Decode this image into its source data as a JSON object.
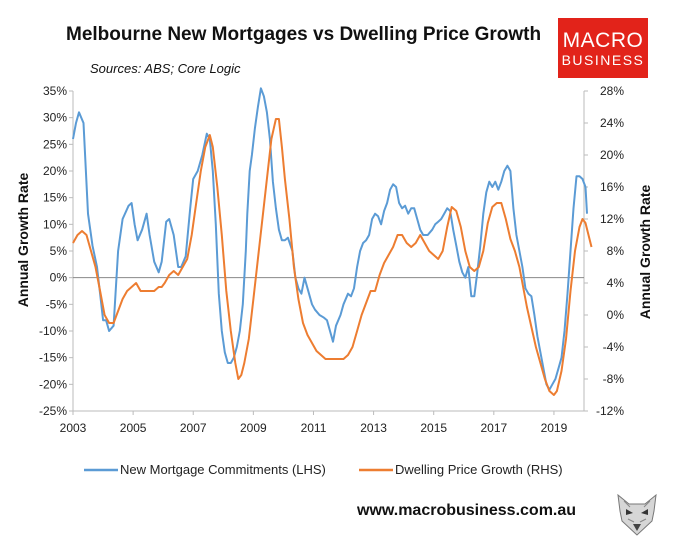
{
  "branding": {
    "logo_line1": "MACRO",
    "logo_line2": "BUSINESS",
    "website": "www.macrobusiness.com.au",
    "logo_color": "#e2231a"
  },
  "chart_data": {
    "type": "line",
    "title": "Melbourne New Mortgages vs Dwelling Price Growth",
    "subtitle": "Sources: ABS; Core Logic",
    "ylabel": "Annual Growth Rate",
    "y2label": "Annual Growth Rate",
    "xlim": [
      2003,
      2020
    ],
    "ylim": [
      -25,
      35
    ],
    "y2lim": [
      -12,
      28
    ],
    "x_ticks": [
      "2003",
      "2005",
      "2007",
      "2009",
      "2011",
      "2013",
      "2015",
      "2017",
      "2019"
    ],
    "y_ticks": [
      "35%",
      "30%",
      "25%",
      "20%",
      "15%",
      "10%",
      "5%",
      "0%",
      "-5%",
      "-10%",
      "-15%",
      "-20%",
      "-25%"
    ],
    "y2_ticks": [
      "28%",
      "24%",
      "20%",
      "16%",
      "12%",
      "8%",
      "4%",
      "0%",
      "-4%",
      "-8%",
      "-12%"
    ],
    "legend_position": "bottom",
    "series": [
      {
        "name": "New Mortgage Commitments (LHS)",
        "axis": "left",
        "color": "#5b9bd5",
        "points": [
          [
            2003.0,
            26
          ],
          [
            2003.1,
            29
          ],
          [
            2003.2,
            31
          ],
          [
            2003.35,
            29
          ],
          [
            2003.5,
            12
          ],
          [
            2003.65,
            6
          ],
          [
            2003.8,
            2
          ],
          [
            2003.9,
            -3
          ],
          [
            2004.0,
            -8
          ],
          [
            2004.1,
            -8
          ],
          [
            2004.2,
            -10
          ],
          [
            2004.35,
            -9
          ],
          [
            2004.5,
            5
          ],
          [
            2004.65,
            11
          ],
          [
            2004.85,
            13.5
          ],
          [
            2004.95,
            14
          ],
          [
            2005.05,
            10
          ],
          [
            2005.15,
            7
          ],
          [
            2005.3,
            9
          ],
          [
            2005.45,
            12
          ],
          [
            2005.55,
            8
          ],
          [
            2005.7,
            3
          ],
          [
            2005.85,
            1
          ],
          [
            2005.95,
            3
          ],
          [
            2006.1,
            10.5
          ],
          [
            2006.2,
            11
          ],
          [
            2006.35,
            8
          ],
          [
            2006.5,
            2
          ],
          [
            2006.6,
            2
          ],
          [
            2006.75,
            4
          ],
          [
            2006.9,
            13
          ],
          [
            2007.0,
            18.5
          ],
          [
            2007.15,
            20
          ],
          [
            2007.3,
            23
          ],
          [
            2007.45,
            27
          ],
          [
            2007.55,
            26
          ],
          [
            2007.65,
            20
          ],
          [
            2007.75,
            10
          ],
          [
            2007.85,
            -3
          ],
          [
            2007.95,
            -10
          ],
          [
            2008.05,
            -14
          ],
          [
            2008.15,
            -16
          ],
          [
            2008.25,
            -16
          ],
          [
            2008.35,
            -15
          ],
          [
            2008.45,
            -13
          ],
          [
            2008.55,
            -10
          ],
          [
            2008.65,
            -5
          ],
          [
            2008.75,
            5
          ],
          [
            2008.8,
            12
          ],
          [
            2008.88,
            20
          ],
          [
            2008.95,
            23
          ],
          [
            2009.05,
            28
          ],
          [
            2009.15,
            32
          ],
          [
            2009.25,
            35.5
          ],
          [
            2009.35,
            34
          ],
          [
            2009.45,
            31
          ],
          [
            2009.55,
            26
          ],
          [
            2009.65,
            18
          ],
          [
            2009.75,
            13
          ],
          [
            2009.85,
            9
          ],
          [
            2009.95,
            7
          ],
          [
            2010.05,
            7
          ],
          [
            2010.15,
            7.5
          ],
          [
            2010.3,
            5
          ],
          [
            2010.4,
            0
          ],
          [
            2010.5,
            -2
          ],
          [
            2010.6,
            -3
          ],
          [
            2010.7,
            0
          ],
          [
            2010.8,
            -2
          ],
          [
            2010.95,
            -5
          ],
          [
            2011.05,
            -6
          ],
          [
            2011.2,
            -7
          ],
          [
            2011.35,
            -7.5
          ],
          [
            2011.45,
            -8
          ],
          [
            2011.55,
            -10
          ],
          [
            2011.65,
            -12
          ],
          [
            2011.75,
            -9
          ],
          [
            2011.9,
            -7
          ],
          [
            2012.0,
            -5
          ],
          [
            2012.15,
            -3
          ],
          [
            2012.25,
            -3.5
          ],
          [
            2012.35,
            -2
          ],
          [
            2012.45,
            2
          ],
          [
            2012.55,
            5
          ],
          [
            2012.65,
            6.5
          ],
          [
            2012.75,
            7
          ],
          [
            2012.85,
            8
          ],
          [
            2012.95,
            11
          ],
          [
            2013.05,
            12
          ],
          [
            2013.15,
            11.5
          ],
          [
            2013.25,
            10
          ],
          [
            2013.35,
            12.5
          ],
          [
            2013.45,
            14
          ],
          [
            2013.55,
            16.5
          ],
          [
            2013.65,
            17.5
          ],
          [
            2013.75,
            17
          ],
          [
            2013.85,
            14
          ],
          [
            2013.95,
            13
          ],
          [
            2014.05,
            13.5
          ],
          [
            2014.15,
            12
          ],
          [
            2014.25,
            13
          ],
          [
            2014.35,
            13
          ],
          [
            2014.45,
            11
          ],
          [
            2014.55,
            9
          ],
          [
            2014.65,
            8
          ],
          [
            2014.8,
            8
          ],
          [
            2014.95,
            9
          ],
          [
            2015.05,
            10
          ],
          [
            2015.15,
            10.5
          ],
          [
            2015.25,
            11
          ],
          [
            2015.35,
            12
          ],
          [
            2015.45,
            13
          ],
          [
            2015.55,
            12.5
          ],
          [
            2015.65,
            9
          ],
          [
            2015.75,
            6
          ],
          [
            2015.85,
            3
          ],
          [
            2015.95,
            1
          ],
          [
            2016.05,
            0
          ],
          [
            2016.15,
            2
          ],
          [
            2016.25,
            -3.5
          ],
          [
            2016.35,
            -3.5
          ],
          [
            2016.45,
            1
          ],
          [
            2016.55,
            6
          ],
          [
            2016.65,
            12
          ],
          [
            2016.75,
            16
          ],
          [
            2016.85,
            18
          ],
          [
            2016.95,
            17
          ],
          [
            2017.05,
            18
          ],
          [
            2017.15,
            16.5
          ],
          [
            2017.25,
            18
          ],
          [
            2017.35,
            20
          ],
          [
            2017.45,
            21
          ],
          [
            2017.55,
            20
          ],
          [
            2017.65,
            13
          ],
          [
            2017.75,
            8
          ],
          [
            2017.85,
            5
          ],
          [
            2017.95,
            2
          ],
          [
            2018.05,
            -2
          ],
          [
            2018.15,
            -3
          ],
          [
            2018.25,
            -3.5
          ],
          [
            2018.35,
            -7
          ],
          [
            2018.45,
            -11
          ],
          [
            2018.55,
            -14
          ],
          [
            2018.65,
            -17
          ],
          [
            2018.75,
            -20
          ],
          [
            2018.85,
            -21
          ],
          [
            2018.95,
            -20
          ],
          [
            2019.05,
            -19
          ],
          [
            2019.15,
            -17
          ],
          [
            2019.25,
            -15
          ],
          [
            2019.35,
            -10
          ],
          [
            2019.45,
            -3
          ],
          [
            2019.55,
            5
          ],
          [
            2019.65,
            13
          ],
          [
            2019.75,
            19
          ],
          [
            2019.85,
            19
          ],
          [
            2019.95,
            18.5
          ],
          [
            2020.05,
            17
          ],
          [
            2020.1,
            12
          ]
        ]
      },
      {
        "name": "Dwelling Price Growth (RHS)",
        "axis": "right",
        "color": "#ed7d31",
        "points": [
          [
            2003.0,
            9
          ],
          [
            2003.15,
            10
          ],
          [
            2003.3,
            10.5
          ],
          [
            2003.45,
            10
          ],
          [
            2003.6,
            8
          ],
          [
            2003.75,
            6
          ],
          [
            2003.9,
            3
          ],
          [
            2004.05,
            0
          ],
          [
            2004.2,
            -1
          ],
          [
            2004.35,
            -1
          ],
          [
            2004.5,
            0.5
          ],
          [
            2004.65,
            2
          ],
          [
            2004.8,
            3
          ],
          [
            2004.95,
            3.5
          ],
          [
            2005.1,
            4
          ],
          [
            2005.25,
            3
          ],
          [
            2005.4,
            3
          ],
          [
            2005.55,
            3
          ],
          [
            2005.7,
            3
          ],
          [
            2005.85,
            3.5
          ],
          [
            2005.95,
            3.5
          ],
          [
            2006.05,
            4
          ],
          [
            2006.2,
            5
          ],
          [
            2006.35,
            5.5
          ],
          [
            2006.5,
            5
          ],
          [
            2006.65,
            6
          ],
          [
            2006.8,
            7
          ],
          [
            2006.95,
            10
          ],
          [
            2007.1,
            14
          ],
          [
            2007.25,
            18
          ],
          [
            2007.4,
            21
          ],
          [
            2007.55,
            22.5
          ],
          [
            2007.65,
            21
          ],
          [
            2007.8,
            16
          ],
          [
            2007.95,
            10
          ],
          [
            2008.1,
            3
          ],
          [
            2008.25,
            -2
          ],
          [
            2008.4,
            -6
          ],
          [
            2008.5,
            -8
          ],
          [
            2008.6,
            -7.5
          ],
          [
            2008.7,
            -6
          ],
          [
            2008.85,
            -3
          ],
          [
            2009.0,
            2
          ],
          [
            2009.15,
            7
          ],
          [
            2009.3,
            12
          ],
          [
            2009.45,
            17
          ],
          [
            2009.6,
            22
          ],
          [
            2009.75,
            24.5
          ],
          [
            2009.85,
            24.5
          ],
          [
            2009.95,
            21
          ],
          [
            2010.05,
            17
          ],
          [
            2010.2,
            12
          ],
          [
            2010.35,
            6
          ],
          [
            2010.5,
            2
          ],
          [
            2010.65,
            -1
          ],
          [
            2010.8,
            -2.5
          ],
          [
            2010.95,
            -3.5
          ],
          [
            2011.1,
            -4.5
          ],
          [
            2011.25,
            -5
          ],
          [
            2011.4,
            -5.5
          ],
          [
            2011.55,
            -5.5
          ],
          [
            2011.7,
            -5.5
          ],
          [
            2011.85,
            -5.5
          ],
          [
            2012.0,
            -5.5
          ],
          [
            2012.15,
            -5
          ],
          [
            2012.3,
            -4
          ],
          [
            2012.45,
            -2
          ],
          [
            2012.6,
            0
          ],
          [
            2012.75,
            1.5
          ],
          [
            2012.9,
            3
          ],
          [
            2013.05,
            3
          ],
          [
            2013.2,
            5
          ],
          [
            2013.35,
            6.5
          ],
          [
            2013.5,
            7.5
          ],
          [
            2013.65,
            8.5
          ],
          [
            2013.8,
            10
          ],
          [
            2013.95,
            10
          ],
          [
            2014.1,
            9
          ],
          [
            2014.25,
            8.5
          ],
          [
            2014.4,
            9
          ],
          [
            2014.55,
            10
          ],
          [
            2014.7,
            9
          ],
          [
            2014.85,
            8
          ],
          [
            2015.0,
            7.5
          ],
          [
            2015.15,
            7
          ],
          [
            2015.3,
            8
          ],
          [
            2015.45,
            11
          ],
          [
            2015.6,
            13.5
          ],
          [
            2015.75,
            13
          ],
          [
            2015.9,
            11
          ],
          [
            2016.05,
            8
          ],
          [
            2016.2,
            6
          ],
          [
            2016.35,
            5.5
          ],
          [
            2016.5,
            6
          ],
          [
            2016.65,
            8
          ],
          [
            2016.8,
            11.5
          ],
          [
            2016.95,
            13.5
          ],
          [
            2017.1,
            14
          ],
          [
            2017.25,
            14
          ],
          [
            2017.4,
            12
          ],
          [
            2017.55,
            9.5
          ],
          [
            2017.7,
            8
          ],
          [
            2017.85,
            6
          ],
          [
            2017.95,
            4
          ],
          [
            2018.1,
            1
          ],
          [
            2018.25,
            -1.5
          ],
          [
            2018.4,
            -4
          ],
          [
            2018.55,
            -6
          ],
          [
            2018.7,
            -8
          ],
          [
            2018.85,
            -9.5
          ],
          [
            2019.0,
            -10
          ],
          [
            2019.1,
            -9.5
          ],
          [
            2019.25,
            -7
          ],
          [
            2019.4,
            -3
          ],
          [
            2019.55,
            3
          ],
          [
            2019.7,
            8
          ],
          [
            2019.85,
            11
          ],
          [
            2019.95,
            12
          ],
          [
            2020.05,
            11.5
          ],
          [
            2020.15,
            10
          ],
          [
            2020.25,
            8.5
          ]
        ]
      }
    ]
  }
}
